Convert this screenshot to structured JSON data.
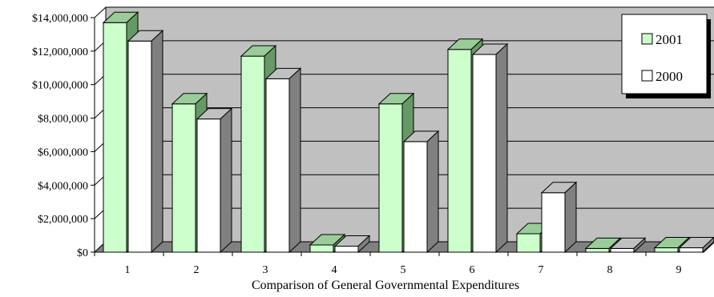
{
  "chart_data": {
    "type": "bar",
    "categories": [
      "1",
      "2",
      "3",
      "4",
      "5",
      "6",
      "7",
      "8",
      "9"
    ],
    "series": [
      {
        "name": "2001",
        "color": "#ccffcc",
        "values": [
          13700000,
          8850000,
          11700000,
          430000,
          8850000,
          12100000,
          1100000,
          220000,
          260000
        ]
      },
      {
        "name": "2000",
        "color": "#ffffff",
        "values": [
          12600000,
          7950000,
          10350000,
          360000,
          6600000,
          11800000,
          3550000,
          220000,
          260000
        ]
      }
    ],
    "y_ticks": [
      "$0",
      "$2,000,000",
      "$4,000,000",
      "$6,000,000",
      "$8,000,000",
      "$10,000,000",
      "$12,000,000",
      "$14,000,000"
    ],
    "ylim": [
      0,
      14000000
    ],
    "xlabel": "Comparison of General Governmental Expenditures",
    "ylabel": "",
    "title": "",
    "legend_position": "top-right",
    "grid": true,
    "style": "3d",
    "colors": {
      "wall": "#c0c0c0",
      "floor": "#808080",
      "side_2001": "#669966",
      "top_2001": "#99cc99",
      "side_2000": "#808080",
      "top_2000": "#c0c0c0",
      "gridline": "#000000"
    }
  }
}
